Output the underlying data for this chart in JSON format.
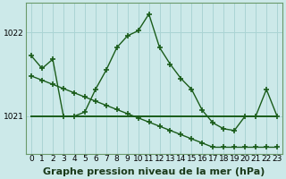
{
  "title": "Graphe pression niveau de la mer (hPa)",
  "background_color": "#cce9e9",
  "grid_color": "#aad4d4",
  "line_color": "#1a5c1a",
  "xlim_min": -0.5,
  "xlim_max": 23.5,
  "ylim_min": 1020.55,
  "ylim_max": 1022.35,
  "yticks": [
    1021,
    1022
  ],
  "xticks": [
    0,
    1,
    2,
    3,
    4,
    5,
    6,
    7,
    8,
    9,
    10,
    11,
    12,
    13,
    14,
    15,
    16,
    17,
    18,
    19,
    20,
    21,
    22,
    23
  ],
  "series1_x": [
    0,
    1,
    2,
    3,
    4,
    5,
    6,
    7,
    8,
    9,
    10,
    11,
    12,
    13,
    14,
    15,
    16,
    17,
    18,
    19,
    20,
    21,
    22,
    23
  ],
  "series1_y": [
    1021.72,
    1021.57,
    1021.68,
    1021.0,
    1021.0,
    1021.05,
    1021.32,
    1021.55,
    1021.82,
    1021.96,
    1022.02,
    1022.22,
    1021.82,
    1021.62,
    1021.45,
    1021.32,
    1021.07,
    1020.92,
    1020.85,
    1020.83,
    1021.0,
    1021.0,
    1021.32,
    1021.0
  ],
  "series2_x": [
    0,
    1,
    2,
    3,
    4,
    5,
    6,
    7,
    8,
    9,
    10,
    11,
    12,
    13,
    14,
    15,
    16,
    17,
    18,
    19,
    20,
    21,
    22,
    23
  ],
  "series2_y": [
    1021.48,
    1021.43,
    1021.38,
    1021.33,
    1021.28,
    1021.23,
    1021.18,
    1021.13,
    1021.08,
    1021.03,
    1020.98,
    1020.93,
    1020.88,
    1020.83,
    1020.78,
    1020.73,
    1020.68,
    1020.63,
    1020.63,
    1020.63,
    1020.63,
    1020.63,
    1020.63,
    1020.63
  ],
  "series3_x": [
    0,
    23
  ],
  "series3_y": [
    1021.0,
    1021.0
  ],
  "title_fontsize": 8,
  "tick_fontsize": 6.5,
  "figwidth": 3.2,
  "figheight": 2.0,
  "dpi": 100
}
